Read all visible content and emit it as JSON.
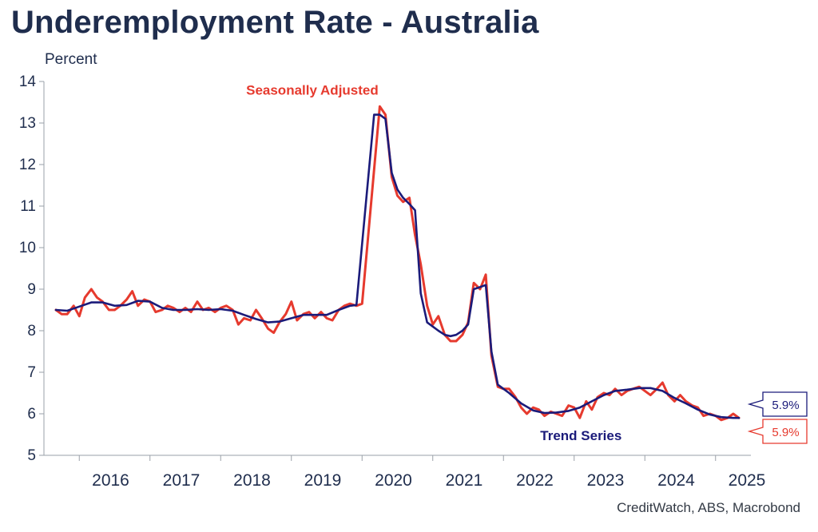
{
  "title": "Underemployment Rate - Australia",
  "unit_label": "Percent",
  "source": "CreditWatch, ABS, Macrobond",
  "colors": {
    "seasonally_adjusted": "#e63a2e",
    "trend": "#1b1b7a",
    "text": "#1f2d4d"
  },
  "chart_data": {
    "type": "line",
    "ylim": [
      5,
      14
    ],
    "y_ticks": [
      5,
      6,
      7,
      8,
      9,
      10,
      11,
      12,
      13,
      14
    ],
    "x_tick_labels": [
      "2016",
      "2017",
      "2018",
      "2019",
      "2020",
      "2021",
      "2022",
      "2023",
      "2024",
      "2025"
    ],
    "grid": false,
    "x_unit": "year",
    "series": [
      {
        "name": "Seasonally Adjusted",
        "color": "#e63a2e",
        "end_label": "5.9%",
        "points": [
          [
            2015.67,
            8.5
          ],
          [
            2015.75,
            8.4
          ],
          [
            2015.83,
            8.4
          ],
          [
            2015.92,
            8.6
          ],
          [
            2016.0,
            8.35
          ],
          [
            2016.08,
            8.8
          ],
          [
            2016.17,
            9.0
          ],
          [
            2016.25,
            8.8
          ],
          [
            2016.33,
            8.7
          ],
          [
            2016.42,
            8.5
          ],
          [
            2016.5,
            8.5
          ],
          [
            2016.58,
            8.6
          ],
          [
            2016.67,
            8.75
          ],
          [
            2016.75,
            8.95
          ],
          [
            2016.83,
            8.6
          ],
          [
            2016.92,
            8.75
          ],
          [
            2017.0,
            8.7
          ],
          [
            2017.08,
            8.45
          ],
          [
            2017.17,
            8.5
          ],
          [
            2017.25,
            8.6
          ],
          [
            2017.33,
            8.55
          ],
          [
            2017.42,
            8.45
          ],
          [
            2017.5,
            8.55
          ],
          [
            2017.58,
            8.45
          ],
          [
            2017.67,
            8.7
          ],
          [
            2017.75,
            8.5
          ],
          [
            2017.83,
            8.55
          ],
          [
            2017.92,
            8.45
          ],
          [
            2018.0,
            8.55
          ],
          [
            2018.08,
            8.6
          ],
          [
            2018.17,
            8.5
          ],
          [
            2018.25,
            8.15
          ],
          [
            2018.33,
            8.3
          ],
          [
            2018.42,
            8.25
          ],
          [
            2018.5,
            8.5
          ],
          [
            2018.58,
            8.3
          ],
          [
            2018.67,
            8.05
          ],
          [
            2018.75,
            7.95
          ],
          [
            2018.83,
            8.2
          ],
          [
            2018.92,
            8.4
          ],
          [
            2019.0,
            8.7
          ],
          [
            2019.08,
            8.25
          ],
          [
            2019.17,
            8.4
          ],
          [
            2019.25,
            8.45
          ],
          [
            2019.33,
            8.3
          ],
          [
            2019.42,
            8.45
          ],
          [
            2019.5,
            8.3
          ],
          [
            2019.58,
            8.25
          ],
          [
            2019.67,
            8.5
          ],
          [
            2019.75,
            8.6
          ],
          [
            2019.83,
            8.65
          ],
          [
            2019.92,
            8.6
          ],
          [
            2020.0,
            8.65
          ],
          [
            2020.25,
            13.4
          ],
          [
            2020.33,
            13.2
          ],
          [
            2020.42,
            11.7
          ],
          [
            2020.5,
            11.25
          ],
          [
            2020.58,
            11.1
          ],
          [
            2020.67,
            11.2
          ],
          [
            2020.75,
            10.3
          ],
          [
            2020.83,
            9.6
          ],
          [
            2020.92,
            8.6
          ],
          [
            2021.0,
            8.15
          ],
          [
            2021.08,
            8.35
          ],
          [
            2021.17,
            7.9
          ],
          [
            2021.25,
            7.75
          ],
          [
            2021.33,
            7.75
          ],
          [
            2021.42,
            7.9
          ],
          [
            2021.5,
            8.2
          ],
          [
            2021.58,
            9.15
          ],
          [
            2021.67,
            9.0
          ],
          [
            2021.75,
            9.35
          ],
          [
            2021.83,
            7.4
          ],
          [
            2021.92,
            6.65
          ],
          [
            2022.0,
            6.6
          ],
          [
            2022.08,
            6.6
          ],
          [
            2022.17,
            6.4
          ],
          [
            2022.25,
            6.15
          ],
          [
            2022.33,
            6.0
          ],
          [
            2022.42,
            6.15
          ],
          [
            2022.5,
            6.1
          ],
          [
            2022.58,
            5.95
          ],
          [
            2022.67,
            6.05
          ],
          [
            2022.75,
            6.0
          ],
          [
            2022.83,
            5.95
          ],
          [
            2022.92,
            6.2
          ],
          [
            2023.0,
            6.15
          ],
          [
            2023.08,
            5.9
          ],
          [
            2023.17,
            6.3
          ],
          [
            2023.25,
            6.1
          ],
          [
            2023.33,
            6.4
          ],
          [
            2023.42,
            6.5
          ],
          [
            2023.5,
            6.45
          ],
          [
            2023.58,
            6.6
          ],
          [
            2023.67,
            6.45
          ],
          [
            2023.75,
            6.55
          ],
          [
            2023.83,
            6.6
          ],
          [
            2023.92,
            6.65
          ],
          [
            2024.0,
            6.55
          ],
          [
            2024.08,
            6.45
          ],
          [
            2024.17,
            6.6
          ],
          [
            2024.25,
            6.75
          ],
          [
            2024.33,
            6.45
          ],
          [
            2024.42,
            6.3
          ],
          [
            2024.5,
            6.45
          ],
          [
            2024.58,
            6.3
          ],
          [
            2024.67,
            6.2
          ],
          [
            2024.75,
            6.15
          ],
          [
            2024.83,
            5.95
          ],
          [
            2024.92,
            6.0
          ],
          [
            2025.0,
            5.95
          ],
          [
            2025.08,
            5.85
          ],
          [
            2025.17,
            5.9
          ],
          [
            2025.25,
            6.0
          ],
          [
            2025.33,
            5.9
          ]
        ]
      },
      {
        "name": "Trend Series",
        "color": "#1b1b7a",
        "end_label": "5.9%",
        "points": [
          [
            2015.67,
            8.5
          ],
          [
            2015.83,
            8.48
          ],
          [
            2016.0,
            8.58
          ],
          [
            2016.17,
            8.68
          ],
          [
            2016.33,
            8.68
          ],
          [
            2016.5,
            8.6
          ],
          [
            2016.67,
            8.62
          ],
          [
            2016.83,
            8.72
          ],
          [
            2017.0,
            8.7
          ],
          [
            2017.17,
            8.55
          ],
          [
            2017.33,
            8.5
          ],
          [
            2017.5,
            8.5
          ],
          [
            2017.67,
            8.52
          ],
          [
            2017.83,
            8.5
          ],
          [
            2018.0,
            8.52
          ],
          [
            2018.17,
            8.48
          ],
          [
            2018.33,
            8.38
          ],
          [
            2018.5,
            8.28
          ],
          [
            2018.67,
            8.2
          ],
          [
            2018.83,
            8.22
          ],
          [
            2019.0,
            8.3
          ],
          [
            2019.17,
            8.38
          ],
          [
            2019.33,
            8.38
          ],
          [
            2019.5,
            8.38
          ],
          [
            2019.67,
            8.5
          ],
          [
            2019.83,
            8.6
          ],
          [
            2019.92,
            8.62
          ],
          [
            2020.17,
            13.2
          ],
          [
            2020.25,
            13.2
          ],
          [
            2020.33,
            13.1
          ],
          [
            2020.42,
            11.8
          ],
          [
            2020.5,
            11.4
          ],
          [
            2020.58,
            11.2
          ],
          [
            2020.67,
            11.05
          ],
          [
            2020.75,
            10.9
          ],
          [
            2020.83,
            8.9
          ],
          [
            2020.92,
            8.2
          ],
          [
            2021.0,
            8.1
          ],
          [
            2021.08,
            8.0
          ],
          [
            2021.17,
            7.9
          ],
          [
            2021.25,
            7.87
          ],
          [
            2021.33,
            7.9
          ],
          [
            2021.42,
            8.0
          ],
          [
            2021.5,
            8.15
          ],
          [
            2021.58,
            9.0
          ],
          [
            2021.67,
            9.05
          ],
          [
            2021.75,
            9.1
          ],
          [
            2021.83,
            7.5
          ],
          [
            2021.92,
            6.7
          ],
          [
            2022.08,
            6.5
          ],
          [
            2022.25,
            6.25
          ],
          [
            2022.42,
            6.08
          ],
          [
            2022.58,
            6.02
          ],
          [
            2022.75,
            6.03
          ],
          [
            2022.92,
            6.07
          ],
          [
            2023.08,
            6.15
          ],
          [
            2023.25,
            6.3
          ],
          [
            2023.42,
            6.45
          ],
          [
            2023.58,
            6.55
          ],
          [
            2023.75,
            6.58
          ],
          [
            2023.92,
            6.62
          ],
          [
            2024.08,
            6.62
          ],
          [
            2024.25,
            6.55
          ],
          [
            2024.42,
            6.38
          ],
          [
            2024.58,
            6.25
          ],
          [
            2024.75,
            6.1
          ],
          [
            2024.92,
            5.98
          ],
          [
            2025.08,
            5.92
          ],
          [
            2025.25,
            5.9
          ],
          [
            2025.33,
            5.9
          ]
        ]
      }
    ],
    "annotations": [
      {
        "text": "Seasonally Adjusted",
        "color": "#e63a2e",
        "x": 2018.36,
        "y": 13.68
      },
      {
        "text": "Trend Series",
        "color": "#1b1b7a",
        "x": 2022.52,
        "y": 5.37
      }
    ]
  }
}
